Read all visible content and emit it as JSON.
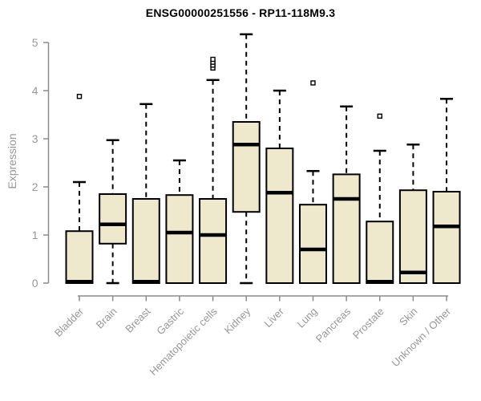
{
  "chart_data": {
    "type": "boxplot",
    "title": "ENSG00000251556 - RP11-118M9.3",
    "ylabel": "Expression",
    "xlabel": "",
    "ylim": [
      0,
      5
    ],
    "yticks": [
      0,
      1,
      2,
      3,
      4,
      5
    ],
    "grid": false,
    "categories": [
      "Bladder",
      "Brain",
      "Breast",
      "Gastric",
      "Hematopoietic cells",
      "Kidney",
      "Liver",
      "Lung",
      "Pancreas",
      "Prostate",
      "Skin",
      "Unknown / Other"
    ],
    "boxes": [
      {
        "category": "Bladder",
        "whisker_low": 0,
        "q1": 0,
        "median": 0.03,
        "q3": 1.08,
        "whisker_high": 2.1,
        "outliers": [
          3.88
        ]
      },
      {
        "category": "Brain",
        "whisker_low": 0,
        "q1": 0.82,
        "median": 1.22,
        "q3": 1.85,
        "whisker_high": 2.97,
        "outliers": []
      },
      {
        "category": "Breast",
        "whisker_low": 0,
        "q1": 0,
        "median": 0.03,
        "q3": 1.75,
        "whisker_high": 3.72,
        "outliers": []
      },
      {
        "category": "Gastric",
        "whisker_low": 0,
        "q1": 0,
        "median": 1.05,
        "q3": 1.83,
        "whisker_high": 2.55,
        "outliers": []
      },
      {
        "category": "Hematopoietic cells",
        "whisker_low": 0,
        "q1": 0,
        "median": 1.0,
        "q3": 1.75,
        "whisker_high": 4.22,
        "outliers": [
          4.47,
          4.53,
          4.59,
          4.65
        ]
      },
      {
        "category": "Kidney",
        "whisker_low": 0,
        "q1": 1.48,
        "median": 2.88,
        "q3": 3.35,
        "whisker_high": 5.17,
        "outliers": []
      },
      {
        "category": "Liver",
        "whisker_low": 0,
        "q1": 0,
        "median": 1.88,
        "q3": 2.8,
        "whisker_high": 4.0,
        "outliers": []
      },
      {
        "category": "Lung",
        "whisker_low": 0,
        "q1": 0,
        "median": 0.7,
        "q3": 1.63,
        "whisker_high": 2.33,
        "outliers": [
          4.16
        ]
      },
      {
        "category": "Pancreas",
        "whisker_low": 0,
        "q1": 0,
        "median": 1.75,
        "q3": 2.26,
        "whisker_high": 3.67,
        "outliers": []
      },
      {
        "category": "Prostate",
        "whisker_low": 0,
        "q1": 0,
        "median": 0.03,
        "q3": 1.28,
        "whisker_high": 2.75,
        "outliers": [
          3.47
        ]
      },
      {
        "category": "Skin",
        "whisker_low": 0,
        "q1": 0,
        "median": 0.22,
        "q3": 1.93,
        "whisker_high": 2.88,
        "outliers": []
      },
      {
        "category": "Unknown / Other",
        "whisker_low": 0,
        "q1": 0,
        "median": 1.18,
        "q3": 1.9,
        "whisker_high": 3.83,
        "outliers": []
      }
    ],
    "colors": {
      "box_fill": "#EEE8CD",
      "box_stroke": "#000000",
      "median": "#000000",
      "whisker": "#000000",
      "axis": "#8B8B8B",
      "tick_label": "#979797",
      "title": "#000000",
      "background": "#FFFFFF"
    },
    "legend": null
  }
}
